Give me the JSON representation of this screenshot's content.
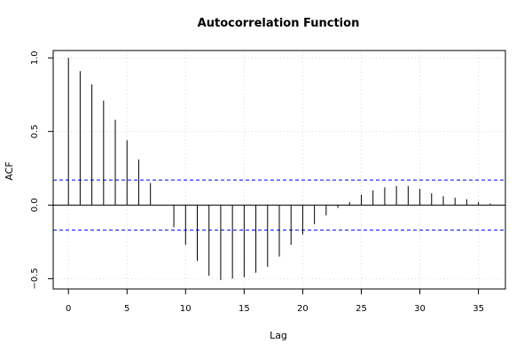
{
  "chart_data": {
    "type": "bar",
    "title": "Autocorrelation Function",
    "xlabel": "Lag",
    "ylabel": "ACF",
    "xlim": [
      -1.3,
      37.3
    ],
    "ylim": [
      -0.57,
      1.05
    ],
    "x_ticks": [
      0,
      5,
      10,
      15,
      20,
      25,
      30,
      35
    ],
    "y_ticks": [
      -0.5,
      0.0,
      0.5,
      1.0
    ],
    "y_tick_labels": [
      "−0.5",
      "0.0",
      "0.5",
      "1.0"
    ],
    "grid": true,
    "confidence_band": [
      0.17,
      -0.17
    ],
    "lags": [
      0,
      1,
      2,
      3,
      4,
      5,
      6,
      7,
      8,
      9,
      10,
      11,
      12,
      13,
      14,
      15,
      16,
      17,
      18,
      19,
      20,
      21,
      22,
      23,
      24,
      25,
      26,
      27,
      28,
      29,
      30,
      31,
      32,
      33,
      34,
      35,
      36
    ],
    "values": [
      1.0,
      0.91,
      0.82,
      0.71,
      0.58,
      0.44,
      0.31,
      0.15,
      0.0,
      -0.15,
      -0.27,
      -0.38,
      -0.48,
      -0.51,
      -0.5,
      -0.49,
      -0.46,
      -0.42,
      -0.35,
      -0.27,
      -0.2,
      -0.13,
      -0.07,
      -0.02,
      0.02,
      0.07,
      0.1,
      0.12,
      0.13,
      0.13,
      0.11,
      0.08,
      0.06,
      0.05,
      0.04,
      0.02,
      0.01
    ]
  },
  "colors": {
    "bar": "#000000",
    "confidence": "#0000ff",
    "grid": "#d9d9d9",
    "axis": "#000000"
  }
}
